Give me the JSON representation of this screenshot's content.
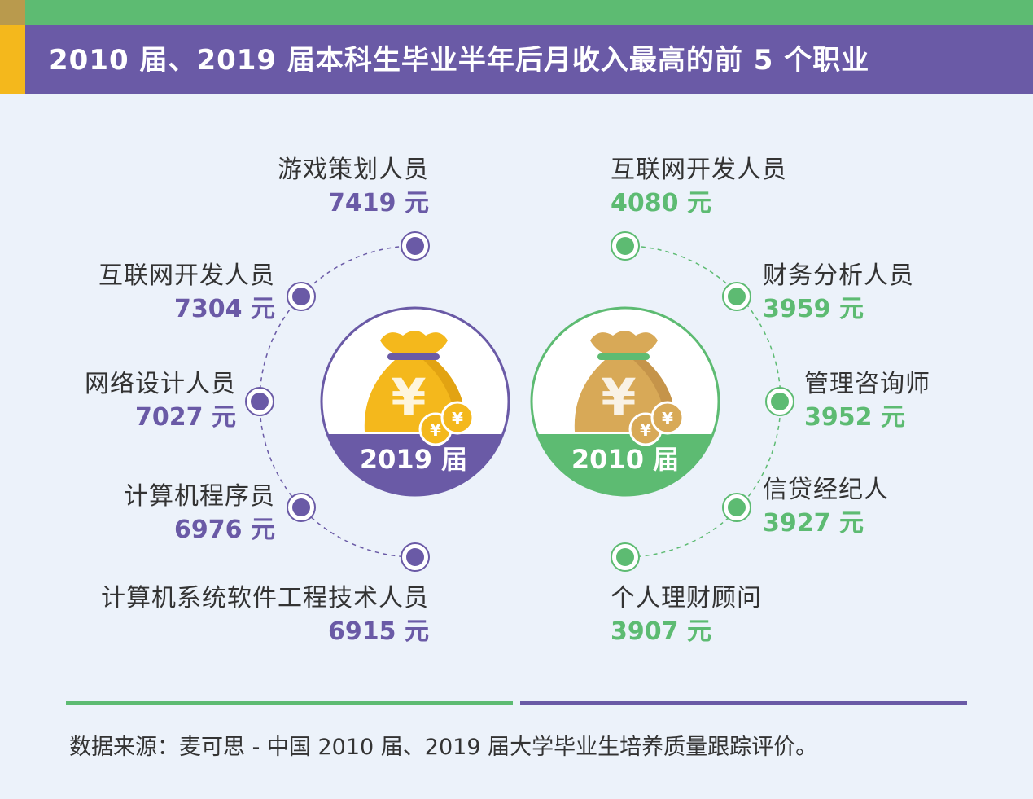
{
  "title": "2010 届、2019 届本科生毕业半年后月收入最高的前 5 个职业",
  "colors": {
    "purple": "#6a5aa6",
    "green": "#5dbb72",
    "gold": "#f4b81c",
    "background": "#ecf2fa"
  },
  "cohort_2019": {
    "label": "2019 届",
    "icon": "money-bag-icon",
    "items": [
      {
        "name": "游戏策划人员",
        "value": "7419 元"
      },
      {
        "name": "互联网开发人员",
        "value": "7304 元"
      },
      {
        "name": "网络设计人员",
        "value": "7027 元"
      },
      {
        "name": "计算机程序员",
        "value": "6976 元"
      },
      {
        "name": "计算机系统软件工程技术人员",
        "value": "6915 元"
      }
    ]
  },
  "cohort_2010": {
    "label": "2010 届",
    "icon": "money-bag-icon",
    "items": [
      {
        "name": "互联网开发人员",
        "value": "4080 元"
      },
      {
        "name": "财务分析人员",
        "value": "3959 元"
      },
      {
        "name": "管理咨询师",
        "value": "3952 元"
      },
      {
        "name": "信贷经纪人",
        "value": "3927 元"
      },
      {
        "name": "个人理财顾问",
        "value": "3907 元"
      }
    ]
  },
  "source": "数据来源：麦可思 - 中国 2010 届、2019 届大学毕业生培养质量跟踪评价。"
}
